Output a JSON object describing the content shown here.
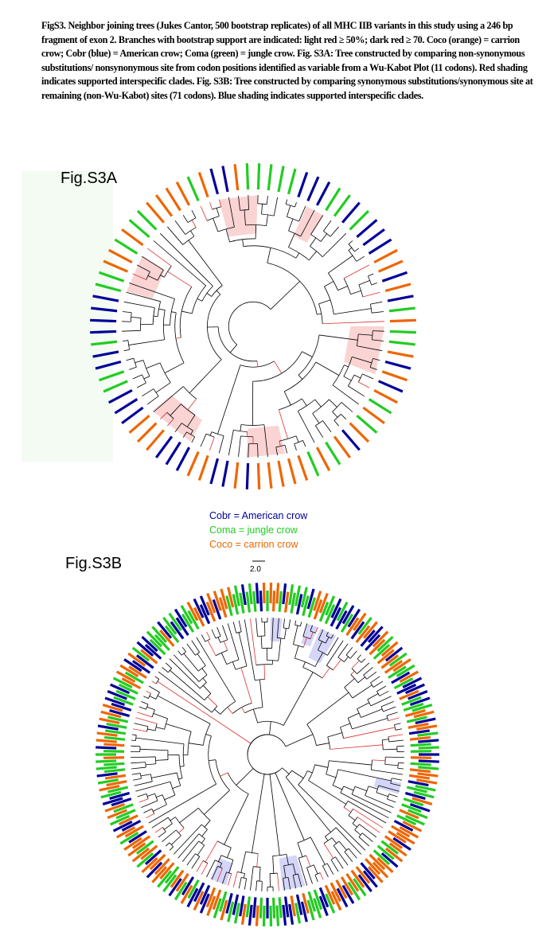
{
  "caption": "FigS3.  Neighbor joining trees (Jukes Cantor, 500 bootstrap replicates) of all MHC IIB variants in this study using a 246 bp fragment of exon 2.  Branches with bootstrap support are indicated: light red ≥ 50%; dark red ≥ 70.  Coco (orange) = carrion crow; Cobr (blue) = American crow; Coma (green) = jungle crow.  Fig. S3A:  Tree constructed by comparing non-synonymous substitutions/ nonsynonymous site from codon positions identified as variable from a Wu-Kabot Plot (11 codons).  Red shading indicates supported interspecific clades.  Fig. S3B: Tree constructed by comparing synonymous substitutions/synonymous site at remaining (non-Wu-Kabot) sites (71 codons).  Blue shading indicates supported interspecific clades.",
  "figure_a": {
    "label": "Fig.S3A"
  },
  "legend": [
    "Cobr = American crow",
    "Coma = jungle crow",
    "Coco = carrion crow"
  ],
  "scale_bar": "2.0",
  "figure_b": {
    "label": "Fig.S3B"
  }
}
